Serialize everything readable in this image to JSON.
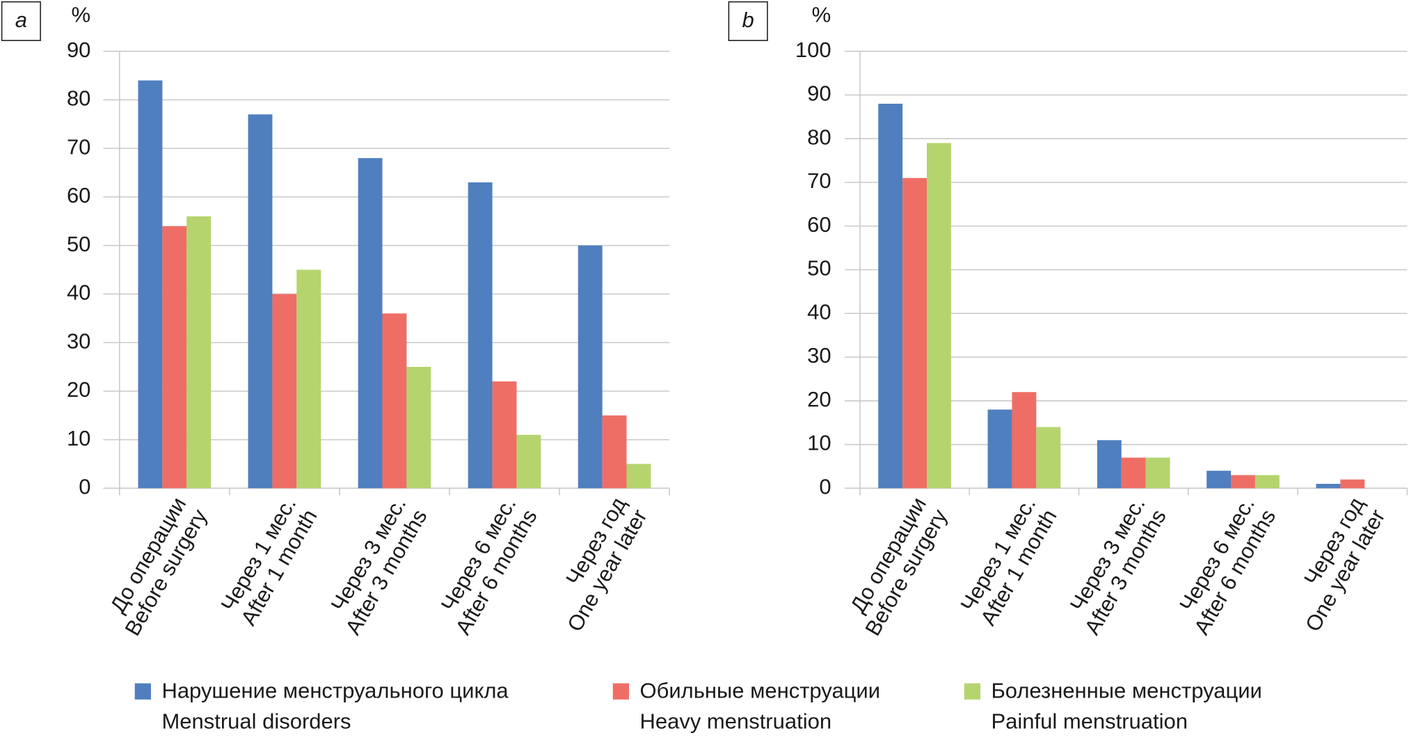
{
  "chart_data": [
    {
      "type": "bar",
      "panel": "a",
      "ylabel": "%",
      "categories": [
        [
          "До операции",
          "Before surgery"
        ],
        [
          "Через 1 мес.",
          "After 1 month"
        ],
        [
          "Через 3 мес.",
          "After 3 months"
        ],
        [
          "Через 6 мес.",
          "After 6 months"
        ],
        [
          "Через год",
          "One year later"
        ]
      ],
      "series": [
        {
          "name": [
            "Нарушение менструального цикла",
            "Menstrual disorders"
          ],
          "color": "#4f7fbf",
          "values": [
            84,
            77,
            68,
            63,
            50
          ]
        },
        {
          "name": [
            "Обильные менструации",
            "Heavy menstruation"
          ],
          "color": "#ee6e66",
          "values": [
            54,
            40,
            36,
            22,
            15
          ]
        },
        {
          "name": [
            "Болезненные менструации",
            "Painful menstruation"
          ],
          "color": "#b5d46e",
          "values": [
            56,
            45,
            25,
            11,
            5
          ]
        }
      ],
      "ylim": [
        0,
        90
      ],
      "yticks": [
        0,
        10,
        20,
        30,
        40,
        50,
        60,
        70,
        80,
        90
      ],
      "grid": true
    },
    {
      "type": "bar",
      "panel": "b",
      "ylabel": "%",
      "categories": [
        [
          "До операции",
          "Before surgery"
        ],
        [
          "Через 1 мес.",
          "After 1 month"
        ],
        [
          "Через 3 мес.",
          "After 3 months"
        ],
        [
          "Через 6 мес.",
          "After 6 months"
        ],
        [
          "Через год",
          "One year later"
        ]
      ],
      "series": [
        {
          "values": [
            88,
            18,
            11,
            4,
            1
          ]
        },
        {
          "values": [
            71,
            22,
            7,
            3,
            2
          ]
        },
        {
          "values": [
            79,
            14,
            7,
            3,
            0
          ]
        }
      ],
      "ylim": [
        0,
        100
      ],
      "yticks": [
        0,
        10,
        20,
        30,
        40,
        50,
        60,
        70,
        80,
        90,
        100
      ],
      "grid": true
    }
  ]
}
